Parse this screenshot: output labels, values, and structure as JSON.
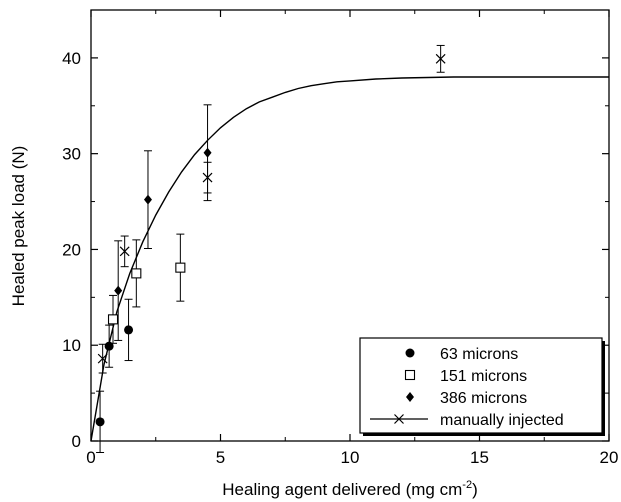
{
  "chart_data": {
    "type": "scatter",
    "xlabel": "Healing agent delivered (mg cm",
    "xlabel_superscript": "-2",
    "xlabel_suffix": ")",
    "ylabel": "Healed peak load (N)",
    "xlim": [
      0,
      20
    ],
    "ylim": [
      0,
      45
    ],
    "x_ticks": [
      0,
      5,
      10,
      15,
      20
    ],
    "y_ticks": [
      0,
      10,
      20,
      30,
      40
    ],
    "grid": false,
    "legend_position": "bottom-right",
    "series": [
      {
        "name": "63 microns",
        "marker": "filled-circle",
        "points": [
          {
            "x": 0.35,
            "y": 2.0,
            "err": 3.2
          },
          {
            "x": 0.7,
            "y": 9.9,
            "err": 2.2
          },
          {
            "x": 1.45,
            "y": 11.6,
            "err": 3.2
          }
        ]
      },
      {
        "name": "151 microns",
        "marker": "open-square",
        "points": [
          {
            "x": 0.85,
            "y": 12.7,
            "err": 2.5
          },
          {
            "x": 1.75,
            "y": 17.5,
            "err": 3.5
          },
          {
            "x": 3.45,
            "y": 18.1,
            "err": 3.5
          }
        ]
      },
      {
        "name": "386 microns",
        "marker": "filled-diamond",
        "points": [
          {
            "x": 1.05,
            "y": 15.7,
            "err": 5.2
          },
          {
            "x": 2.2,
            "y": 25.2,
            "err": 5.1
          },
          {
            "x": 4.5,
            "y": 30.1,
            "err": 5.0
          }
        ]
      },
      {
        "name": "manually injected",
        "marker": "x",
        "points": [
          {
            "x": 0.45,
            "y": 8.6,
            "err": 1.5
          },
          {
            "x": 1.3,
            "y": 19.8,
            "err": 1.6
          },
          {
            "x": 4.5,
            "y": 27.5,
            "err": 1.6
          },
          {
            "x": 13.5,
            "y": 39.9,
            "err": 1.4
          }
        ]
      }
    ],
    "fit_curve": {
      "x": [
        0,
        0.5,
        1,
        1.5,
        2,
        2.5,
        3,
        3.5,
        4,
        4.5,
        5,
        5.5,
        6,
        6.5,
        7,
        7.5,
        8,
        8.5,
        9,
        9.5,
        10,
        11,
        12,
        13,
        14,
        15,
        16,
        17,
        18,
        19,
        20
      ],
      "y": [
        0,
        8.0,
        13.5,
        17.5,
        20.8,
        23.6,
        26.0,
        28.1,
        29.9,
        31.4,
        32.7,
        33.8,
        34.7,
        35.4,
        35.9,
        36.4,
        36.8,
        37.1,
        37.3,
        37.5,
        37.6,
        37.8,
        37.9,
        37.95,
        38.0,
        38.0,
        38.0,
        38.0,
        38.0,
        38.0,
        38.0
      ]
    },
    "colors": {
      "ink": "#000000",
      "background": "#ffffff"
    }
  }
}
